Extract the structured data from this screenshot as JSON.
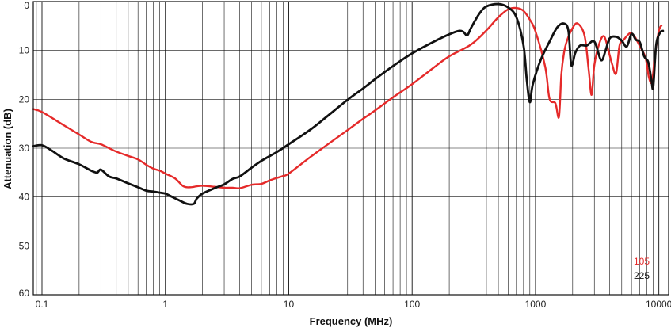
{
  "chart_data": {
    "type": "line",
    "xlabel": "Frequency (MHz)",
    "ylabel": "Attenuation (dB)",
    "x_scale": "log",
    "xlim": [
      0.085,
      12000
    ],
    "ylim": [
      0,
      60
    ],
    "y_inverted": true,
    "grid": true,
    "legend_position": "bottom-right",
    "x_tick_labels": [
      {
        "value": 0.1,
        "label": "0.1"
      },
      {
        "value": 1,
        "label": "1"
      },
      {
        "value": 10,
        "label": "10"
      },
      {
        "value": 100,
        "label": "100"
      },
      {
        "value": 1000,
        "label": "1000"
      },
      {
        "value": 10000,
        "label": "10000"
      }
    ],
    "y_ticks": [
      0,
      10,
      20,
      30,
      40,
      50,
      60
    ],
    "series": [
      {
        "name": "105",
        "color": "#e52a2a",
        "points": [
          [
            0.085,
            22
          ],
          [
            0.1,
            22.6
          ],
          [
            0.15,
            25.3
          ],
          [
            0.2,
            27.2
          ],
          [
            0.25,
            28.7
          ],
          [
            0.3,
            29.2
          ],
          [
            0.35,
            30
          ],
          [
            0.4,
            30.7
          ],
          [
            0.5,
            31.6
          ],
          [
            0.6,
            32.3
          ],
          [
            0.7,
            33.4
          ],
          [
            0.8,
            34.2
          ],
          [
            0.9,
            34.6
          ],
          [
            1,
            35.2
          ],
          [
            1.2,
            36.2
          ],
          [
            1.4,
            37.8
          ],
          [
            1.6,
            38
          ],
          [
            1.8,
            37.8
          ],
          [
            2,
            37.7
          ],
          [
            2.5,
            37.9
          ],
          [
            3,
            38.1
          ],
          [
            3.5,
            38.1
          ],
          [
            4,
            38.2
          ],
          [
            5,
            37.5
          ],
          [
            6,
            37.3
          ],
          [
            7,
            36.6
          ],
          [
            8,
            36.1
          ],
          [
            9,
            35.7
          ],
          [
            10,
            35.2
          ],
          [
            15,
            31.8
          ],
          [
            20,
            29.5
          ],
          [
            30,
            26.3
          ],
          [
            40,
            24
          ],
          [
            50,
            22.3
          ],
          [
            70,
            19.6
          ],
          [
            100,
            16.9
          ],
          [
            150,
            13.5
          ],
          [
            200,
            11.2
          ],
          [
            300,
            8.8
          ],
          [
            400,
            5.9
          ],
          [
            500,
            3.2
          ],
          [
            600,
            1.6
          ],
          [
            700,
            1.3
          ],
          [
            800,
            1.9
          ],
          [
            900,
            3.7
          ],
          [
            1000,
            6.1
          ],
          [
            1200,
            13.4
          ],
          [
            1300,
            19.9
          ],
          [
            1450,
            20.8
          ],
          [
            1550,
            23.6
          ],
          [
            1620,
            15
          ],
          [
            1700,
            10.6
          ],
          [
            1800,
            8
          ],
          [
            2000,
            5.4
          ],
          [
            2200,
            4.5
          ],
          [
            2500,
            7
          ],
          [
            2700,
            14
          ],
          [
            2850,
            19.1
          ],
          [
            3000,
            13
          ],
          [
            3300,
            8.5
          ],
          [
            3600,
            7.1
          ],
          [
            3900,
            10
          ],
          [
            4200,
            13
          ],
          [
            4500,
            14.7
          ],
          [
            4800,
            9
          ],
          [
            5200,
            7.8
          ],
          [
            5800,
            6.5
          ],
          [
            6300,
            7
          ],
          [
            7000,
            9.1
          ],
          [
            7800,
            11.5
          ],
          [
            8300,
            15.5
          ],
          [
            8800,
            16.4
          ],
          [
            9300,
            11
          ],
          [
            10000,
            6
          ],
          [
            10500,
            4.9
          ]
        ]
      },
      {
        "name": "225",
        "color": "#111111",
        "points": [
          [
            0.085,
            29.6
          ],
          [
            0.1,
            29.4
          ],
          [
            0.12,
            30.5
          ],
          [
            0.15,
            32.1
          ],
          [
            0.2,
            33.3
          ],
          [
            0.25,
            34.6
          ],
          [
            0.28,
            35
          ],
          [
            0.3,
            34.4
          ],
          [
            0.35,
            35.8
          ],
          [
            0.4,
            36.2
          ],
          [
            0.5,
            37.2
          ],
          [
            0.6,
            38
          ],
          [
            0.7,
            38.7
          ],
          [
            0.8,
            38.9
          ],
          [
            0.9,
            39.1
          ],
          [
            1,
            39.3
          ],
          [
            1.1,
            39.8
          ],
          [
            1.3,
            40.7
          ],
          [
            1.5,
            41.4
          ],
          [
            1.7,
            41.4
          ],
          [
            1.8,
            40.3
          ],
          [
            2,
            39.3
          ],
          [
            2.5,
            38.2
          ],
          [
            3,
            37.4
          ],
          [
            3.5,
            36.3
          ],
          [
            4,
            35.8
          ],
          [
            5,
            34
          ],
          [
            6,
            32.6
          ],
          [
            8,
            30.8
          ],
          [
            10,
            29.2
          ],
          [
            15,
            26.2
          ],
          [
            20,
            23.7
          ],
          [
            30,
            20.1
          ],
          [
            40,
            17.8
          ],
          [
            50,
            15.9
          ],
          [
            70,
            13.2
          ],
          [
            100,
            10.6
          ],
          [
            150,
            8.2
          ],
          [
            200,
            6.7
          ],
          [
            240,
            6
          ],
          [
            260,
            6.2
          ],
          [
            280,
            6.9
          ],
          [
            300,
            5.4
          ],
          [
            350,
            2.5
          ],
          [
            400,
            1
          ],
          [
            500,
            0.5
          ],
          [
            600,
            1.2
          ],
          [
            700,
            3.2
          ],
          [
            800,
            9
          ],
          [
            850,
            16
          ],
          [
            900,
            20.6
          ],
          [
            950,
            17
          ],
          [
            1100,
            12
          ],
          [
            1300,
            8.2
          ],
          [
            1500,
            5.3
          ],
          [
            1700,
            4.5
          ],
          [
            1850,
            6
          ],
          [
            1950,
            13
          ],
          [
            2100,
            10.5
          ],
          [
            2300,
            9
          ],
          [
            2600,
            9
          ],
          [
            3000,
            8.2
          ],
          [
            3400,
            12
          ],
          [
            3700,
            10
          ],
          [
            4000,
            7.5
          ],
          [
            4500,
            7.2
          ],
          [
            5000,
            8
          ],
          [
            5500,
            9.2
          ],
          [
            6000,
            6.6
          ],
          [
            6500,
            7.8
          ],
          [
            7000,
            8.3
          ],
          [
            7600,
            11.2
          ],
          [
            8200,
            12.4
          ],
          [
            8700,
            16
          ],
          [
            9000,
            17.5
          ],
          [
            9500,
            9
          ],
          [
            10200,
            6.4
          ],
          [
            10800,
            6
          ]
        ]
      }
    ]
  }
}
